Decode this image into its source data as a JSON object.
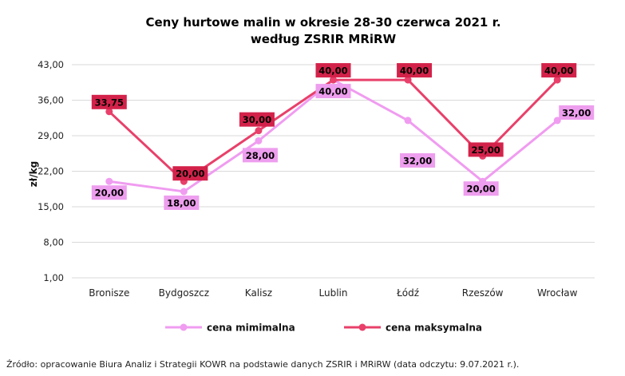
{
  "chart_data": {
    "type": "line",
    "title": "Ceny hurtowe malin  w okresie 28-30 czerwca 2021 r.",
    "subtitle": "według ZSRIR MRiRW",
    "ylabel": "zł/kg",
    "xlabel": "",
    "ylim": [
      1,
      43
    ],
    "yticks": [
      "43,00",
      "36,00",
      "29,00",
      "22,00",
      "15,00",
      "8,00",
      "1,00"
    ],
    "ytick_values": [
      43,
      36,
      29,
      22,
      15,
      8,
      1
    ],
    "grid": true,
    "legend_position": "bottom",
    "categories": [
      "Bronisze",
      "Bydgoszcz",
      "Kalisz",
      "Lublin",
      "Łódź",
      "Rzeszów",
      "Wrocław"
    ],
    "series": [
      {
        "name": "cena mimimalna",
        "color": "#F09CF0",
        "label_bg": "#EE9EEE",
        "values": [
          20,
          18,
          28,
          40,
          32,
          20,
          32
        ],
        "labels": [
          "20,00",
          "18,00",
          "28,00",
          "40,00",
          "32,00",
          "20,00",
          "32,00"
        ]
      },
      {
        "name": "cena maksymalna",
        "color": "#E8406A",
        "label_bg": "#D3224A",
        "values": [
          33.75,
          20,
          30,
          40,
          40,
          25,
          40
        ],
        "labels": [
          "33,75",
          "20,00",
          "30,00",
          "40,00",
          "40,00",
          "25,00",
          "40,00"
        ]
      }
    ]
  },
  "source": "Źródło: opracowanie  Biura Analiz i Strategii KOWR na podstawie danych ZSRIR i MRiRW (data odczytu: 9.07.2021 r.)."
}
